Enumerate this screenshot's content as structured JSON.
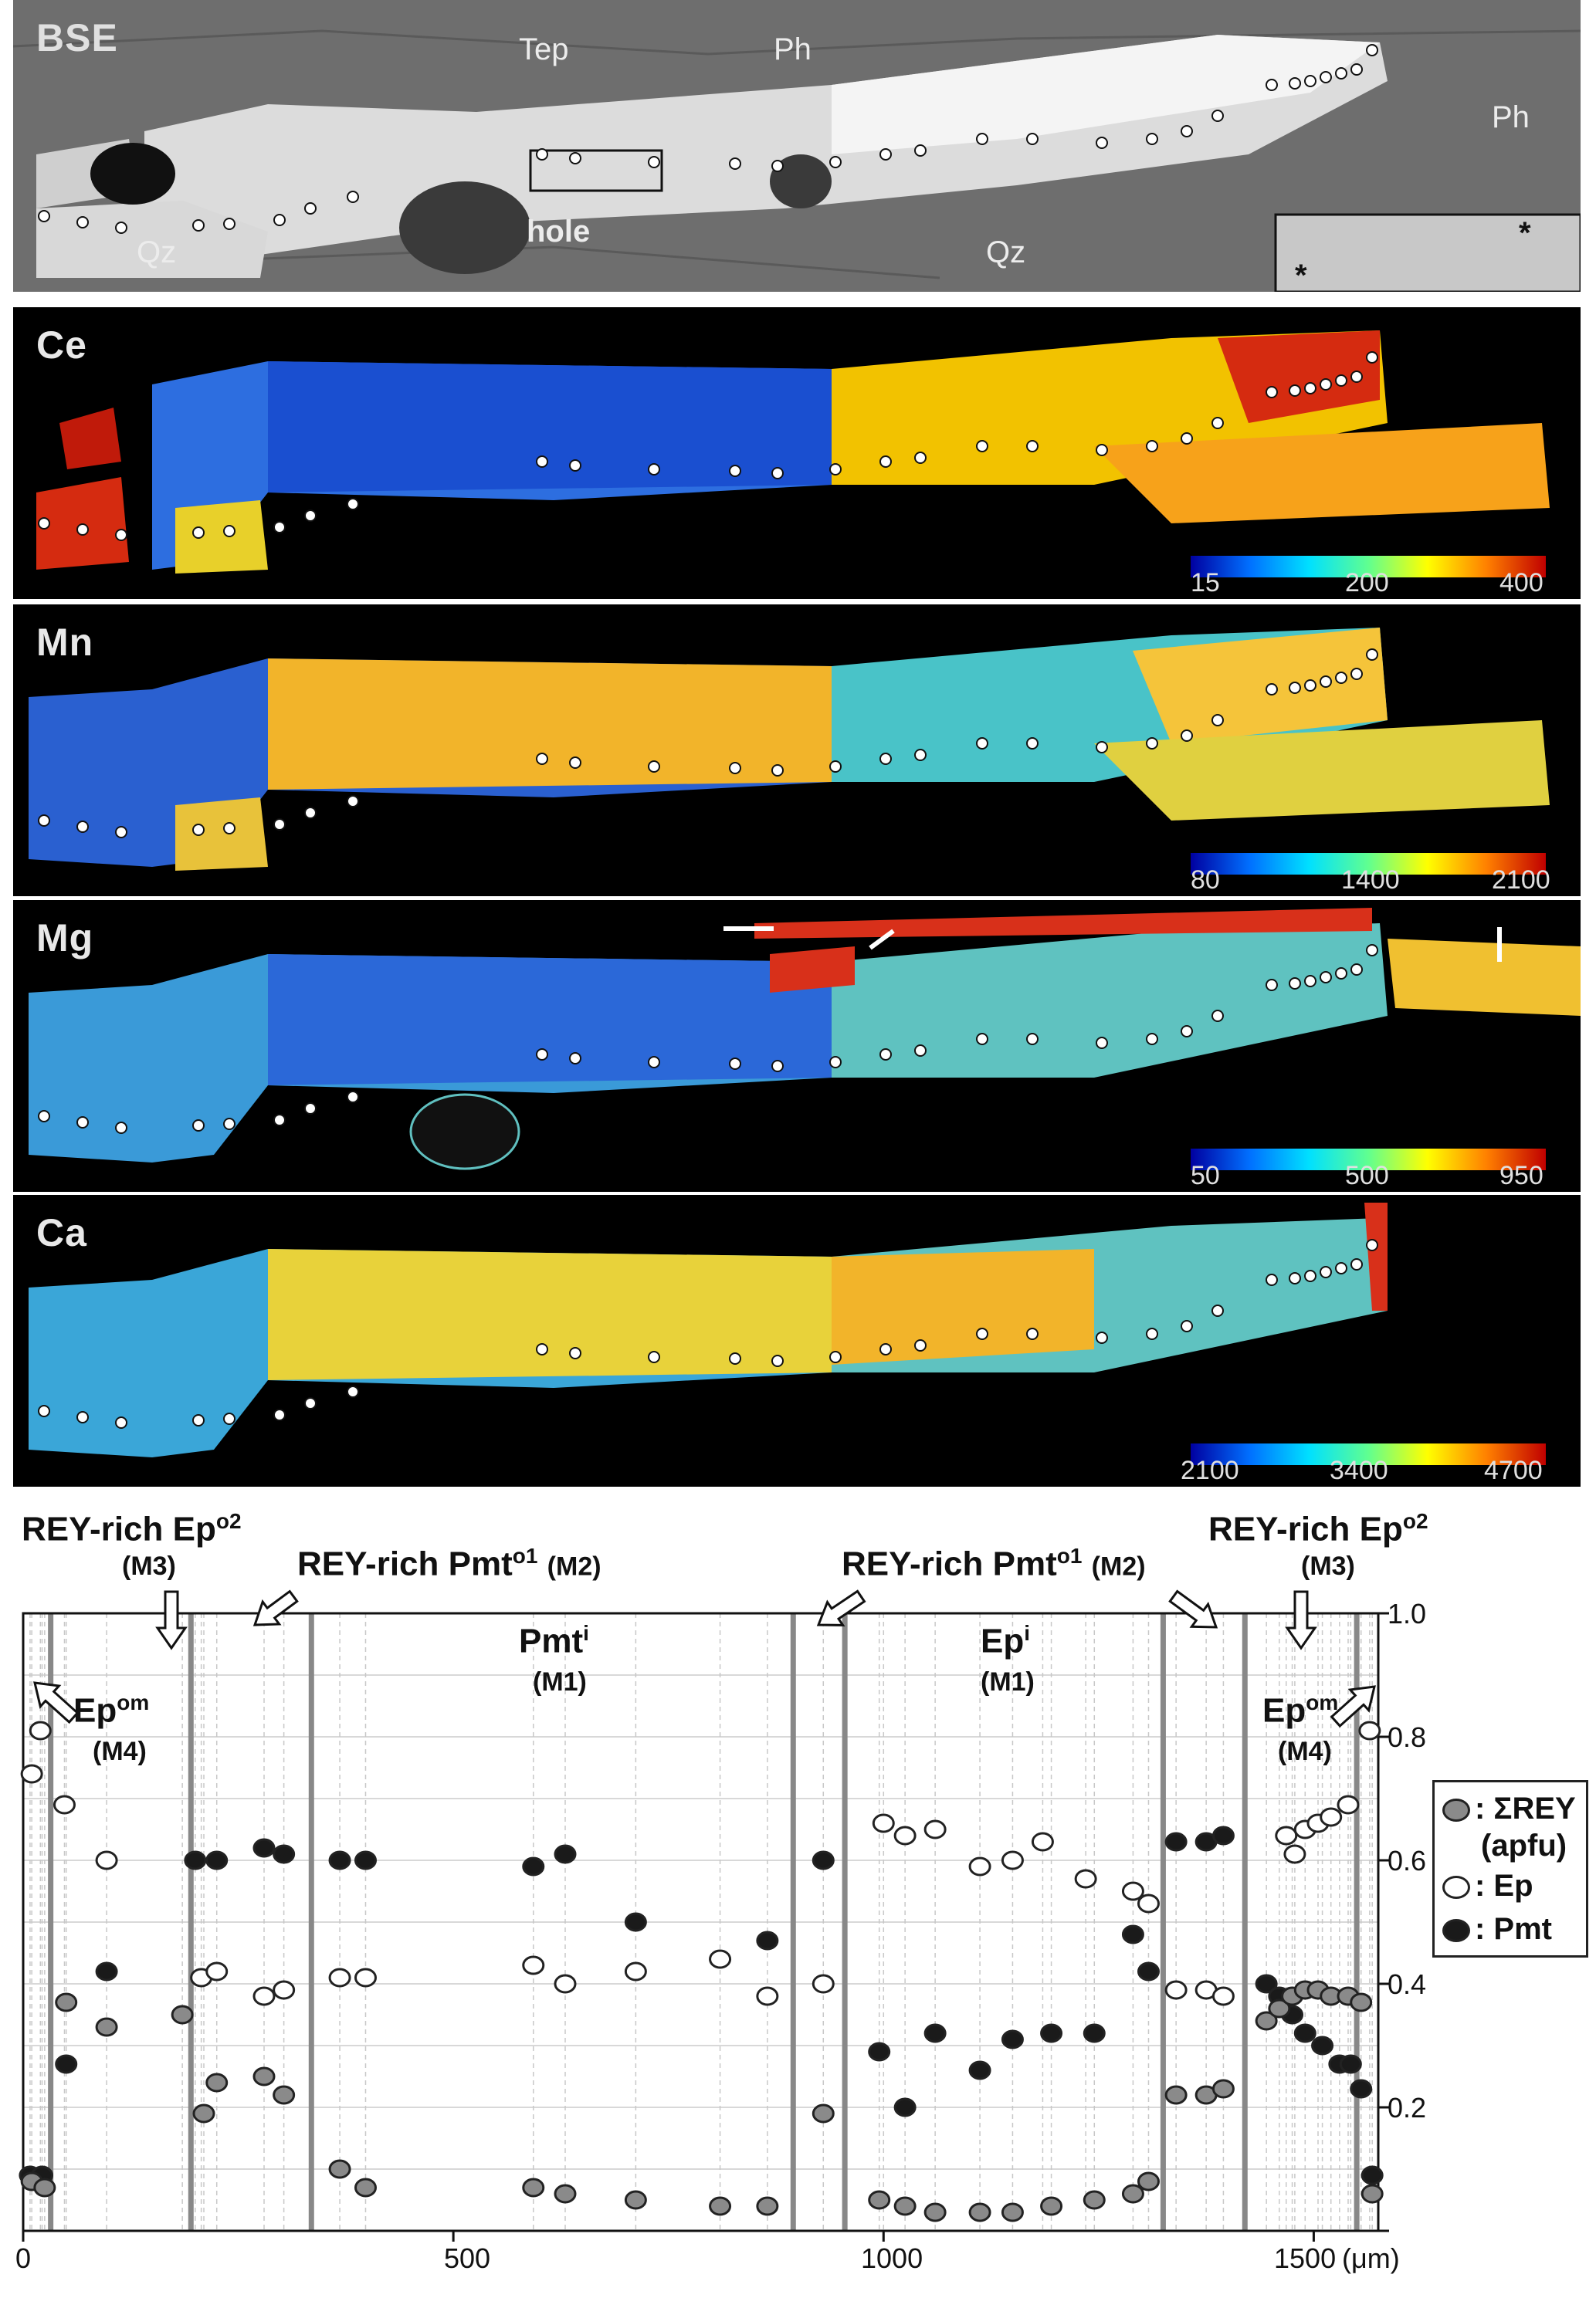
{
  "panels": {
    "bse": {
      "title": "BSE",
      "labels": {
        "tep": "Tep",
        "ph_top": "Ph",
        "ph_right": "Ph",
        "qz_left": "Qz",
        "qz_right": "Qz",
        "hole": "hole"
      },
      "inset_mark": "*"
    },
    "ce": {
      "title": "Ce",
      "scale": [
        "15",
        "200",
        "400"
      ]
    },
    "mn": {
      "title": "Mn",
      "scale": [
        "80",
        "1400",
        "2100"
      ]
    },
    "mg": {
      "title": "Mg",
      "scale": [
        "50",
        "500",
        "950"
      ]
    },
    "ca": {
      "title": "Ca",
      "scale": [
        "2100",
        "3400",
        "4700"
      ]
    }
  },
  "colors": {
    "scale_low": "#0000a0",
    "scale_mid": "#ffff00",
    "scale_high": "#c00000",
    "ep_marker": "#ffffff",
    "pmt_marker": "#1a1a1a",
    "rey_marker": "#8a8a8a"
  },
  "annotations": {
    "rey_ep_left": {
      "main": "REY-rich Ep",
      "sup": "o2",
      "sub": "(M3)"
    },
    "rey_pmt_left": {
      "main": "REY-rich Pmt",
      "sup": "o1",
      "sub": "(M2)"
    },
    "rey_pmt_right": {
      "main": "REY-rich Pmt",
      "sup": "o1",
      "sub": "(M2)"
    },
    "rey_ep_right": {
      "main": "REY-rich Ep",
      "sup": "o2",
      "sub": "(M3)"
    },
    "pmt_i": {
      "main": "Pmt",
      "sup": "i",
      "sub": "(M1)"
    },
    "ep_i": {
      "main": "Ep",
      "sup": "i",
      "sub": "(M1)"
    },
    "ep_om_left": {
      "main": "Ep",
      "sup": "om",
      "sub": "(M4)"
    },
    "ep_om_right": {
      "main": "Ep",
      "sup": "om",
      "sub": "(M4)"
    }
  },
  "legend": {
    "rey": ": ΣREY",
    "rey_unit": "(apfu)",
    "ep": ": Ep",
    "pmt": ": Pmt"
  },
  "chart_data": {
    "type": "scatter",
    "xlabel": "(μm)",
    "ylabel": "",
    "xlim": [
      0,
      1575
    ],
    "ylim": [
      0,
      1.0
    ],
    "x_ticks": [
      "0",
      "500",
      "1000",
      "1500"
    ],
    "y_ticks": [
      "0.2",
      "0.4",
      "0.6",
      "0.8",
      "1.0"
    ],
    "zone_boundaries": [
      32,
      195,
      335,
      895,
      955,
      1325,
      1420,
      1550
    ],
    "series": [
      {
        "name": "Ep",
        "points": [
          [
            10,
            0.74
          ],
          [
            20,
            0.81
          ],
          [
            48,
            0.69
          ],
          [
            97,
            0.6
          ],
          [
            207,
            0.41
          ],
          [
            225,
            0.42
          ],
          [
            280,
            0.38
          ],
          [
            303,
            0.39
          ],
          [
            368,
            0.41
          ],
          [
            398,
            0.41
          ],
          [
            593,
            0.43
          ],
          [
            630,
            0.4
          ],
          [
            712,
            0.42
          ],
          [
            810,
            0.44
          ],
          [
            865,
            0.38
          ],
          [
            930,
            0.4
          ],
          [
            1000,
            0.66
          ],
          [
            1025,
            0.64
          ],
          [
            1060,
            0.65
          ],
          [
            1112,
            0.59
          ],
          [
            1150,
            0.6
          ],
          [
            1185,
            0.63
          ],
          [
            1235,
            0.57
          ],
          [
            1290,
            0.55
          ],
          [
            1308,
            0.53
          ],
          [
            1340,
            0.39
          ],
          [
            1375,
            0.39
          ],
          [
            1395,
            0.38
          ],
          [
            1490,
            0.65
          ],
          [
            1505,
            0.66
          ],
          [
            1520,
            0.67
          ],
          [
            1540,
            0.69
          ],
          [
            1565,
            0.81
          ],
          [
            1468,
            0.64
          ],
          [
            1478,
            0.61
          ]
        ]
      },
      {
        "name": "Pmt",
        "points": [
          [
            8,
            0.09
          ],
          [
            22,
            0.09
          ],
          [
            50,
            0.27
          ],
          [
            97,
            0.42
          ],
          [
            200,
            0.6
          ],
          [
            225,
            0.6
          ],
          [
            280,
            0.62
          ],
          [
            303,
            0.61
          ],
          [
            368,
            0.6
          ],
          [
            398,
            0.6
          ],
          [
            593,
            0.59
          ],
          [
            630,
            0.61
          ],
          [
            712,
            0.5
          ],
          [
            865,
            0.47
          ],
          [
            930,
            0.6
          ],
          [
            995,
            0.29
          ],
          [
            1025,
            0.2
          ],
          [
            1060,
            0.32
          ],
          [
            1112,
            0.26
          ],
          [
            1150,
            0.31
          ],
          [
            1195,
            0.32
          ],
          [
            1245,
            0.32
          ],
          [
            1290,
            0.48
          ],
          [
            1308,
            0.42
          ],
          [
            1340,
            0.63
          ],
          [
            1375,
            0.63
          ],
          [
            1395,
            0.64
          ],
          [
            1445,
            0.4
          ],
          [
            1460,
            0.38
          ],
          [
            1475,
            0.35
          ],
          [
            1490,
            0.32
          ],
          [
            1510,
            0.3
          ],
          [
            1530,
            0.27
          ],
          [
            1543,
            0.27
          ],
          [
            1555,
            0.23
          ],
          [
            1568,
            0.09
          ]
        ]
      },
      {
        "name": "ΣREY",
        "points": [
          [
            10,
            0.08
          ],
          [
            25,
            0.07
          ],
          [
            50,
            0.37
          ],
          [
            97,
            0.33
          ],
          [
            185,
            0.35
          ],
          [
            210,
            0.19
          ],
          [
            225,
            0.24
          ],
          [
            280,
            0.25
          ],
          [
            303,
            0.22
          ],
          [
            368,
            0.1
          ],
          [
            398,
            0.07
          ],
          [
            593,
            0.07
          ],
          [
            630,
            0.06
          ],
          [
            712,
            0.05
          ],
          [
            810,
            0.04
          ],
          [
            865,
            0.04
          ],
          [
            930,
            0.19
          ],
          [
            995,
            0.05
          ],
          [
            1025,
            0.04
          ],
          [
            1060,
            0.03
          ],
          [
            1112,
            0.03
          ],
          [
            1150,
            0.03
          ],
          [
            1195,
            0.04
          ],
          [
            1245,
            0.05
          ],
          [
            1290,
            0.06
          ],
          [
            1308,
            0.08
          ],
          [
            1340,
            0.22
          ],
          [
            1375,
            0.22
          ],
          [
            1395,
            0.23
          ],
          [
            1445,
            0.34
          ],
          [
            1460,
            0.36
          ],
          [
            1475,
            0.38
          ],
          [
            1490,
            0.39
          ],
          [
            1505,
            0.39
          ],
          [
            1520,
            0.38
          ],
          [
            1540,
            0.38
          ],
          [
            1555,
            0.37
          ],
          [
            1568,
            0.06
          ]
        ]
      }
    ]
  }
}
